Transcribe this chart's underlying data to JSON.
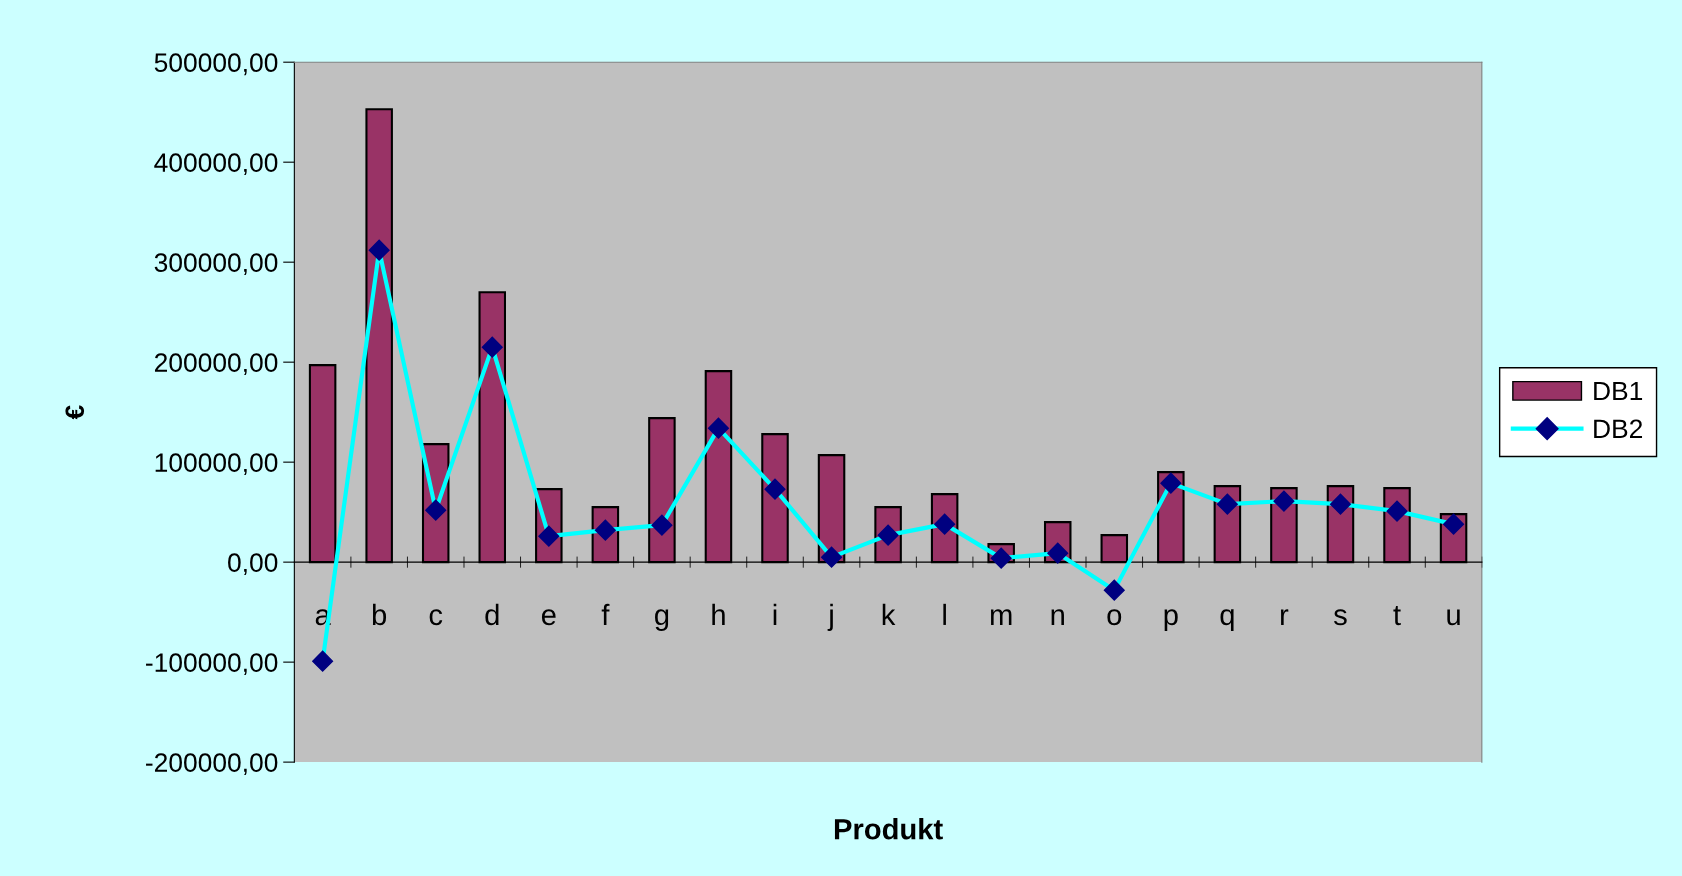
{
  "chart_data": {
    "type": "bar",
    "xlabel": "Produkt",
    "ylabel": "€",
    "categories": [
      "a",
      "b",
      "c",
      "d",
      "e",
      "f",
      "g",
      "h",
      "i",
      "j",
      "k",
      "l",
      "m",
      "n",
      "o",
      "p",
      "q",
      "r",
      "s",
      "t",
      "u"
    ],
    "series": [
      {
        "name": "DB1",
        "color": "#993366",
        "values": [
          197000,
          453000,
          118000,
          270000,
          73000,
          55000,
          144000,
          191000,
          128000,
          107000,
          55000,
          68000,
          18000,
          40000,
          27000,
          90000,
          76000,
          74000,
          76000,
          74000,
          48000
        ]
      },
      {
        "name": "DB2",
        "type": "line",
        "color": "#00ffff",
        "marker": "diamond",
        "values": [
          -99000,
          312000,
          52000,
          215000,
          26000,
          32000,
          37000,
          134000,
          73000,
          5000,
          27000,
          38000,
          4000,
          9000,
          -28000,
          79000,
          58000,
          61000,
          58000,
          51000,
          38000
        ]
      }
    ],
    "ylim": [
      -200000,
      500000
    ],
    "yticks": [
      {
        "value": -200000,
        "label": "-200000,00"
      },
      {
        "value": -100000,
        "label": "-100000,00"
      },
      {
        "value": 0,
        "label": "0,00"
      },
      {
        "value": 100000,
        "label": "100000,00"
      },
      {
        "value": 200000,
        "label": "200000,00"
      },
      {
        "value": 300000,
        "label": "300000,00"
      },
      {
        "value": 400000,
        "label": "400000,00"
      },
      {
        "value": 500000,
        "label": "500000,00"
      }
    ],
    "grid": false,
    "legend": "right"
  }
}
